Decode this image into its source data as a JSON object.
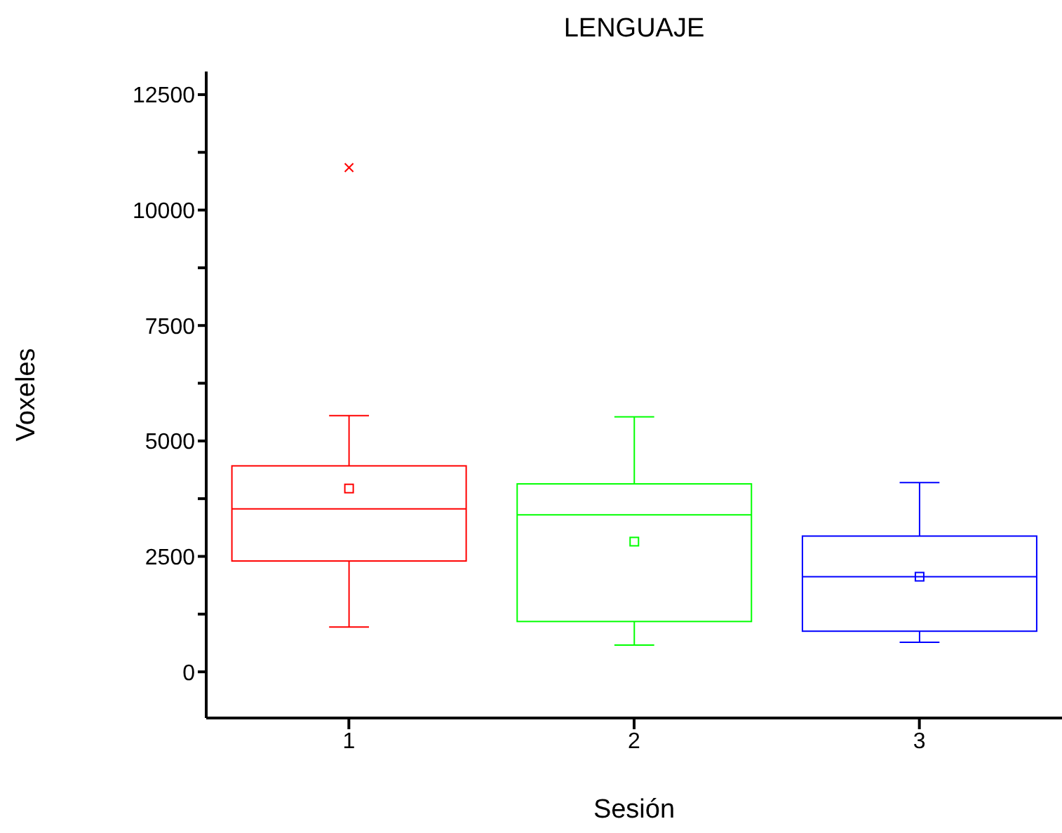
{
  "chart_data": {
    "type": "box",
    "title": "LENGUAJE",
    "xlabel": "Sesión",
    "ylabel": "Voxeles",
    "categories": [
      "1",
      "2",
      "3"
    ],
    "colors": [
      "#ff0000",
      "#00ff00",
      "#0000ff"
    ],
    "boxes": [
      {
        "low": 970,
        "q1": 2400,
        "median": 3530,
        "q3": 4460,
        "high": 5550,
        "mean": 3970,
        "outliers": [
          10920
        ]
      },
      {
        "low": 580,
        "q1": 1090,
        "median": 3400,
        "q3": 4070,
        "high": 5520,
        "mean": 2820
      },
      {
        "low": 640,
        "q1": 880,
        "median": 2060,
        "q3": 2940,
        "high": 4100,
        "mean": 2060
      }
    ],
    "ylim": [
      -1000,
      13000
    ],
    "yticks": [
      0,
      {
        "value": 1250,
        "label": null
      },
      2500,
      {
        "value": 3750,
        "label": null
      },
      5000,
      {
        "value": 6250,
        "label": null
      },
      7500,
      {
        "value": 8750,
        "label": null
      },
      10000,
      {
        "value": 11250,
        "label": null
      },
      12500
    ],
    "grid": false,
    "legend": false
  }
}
